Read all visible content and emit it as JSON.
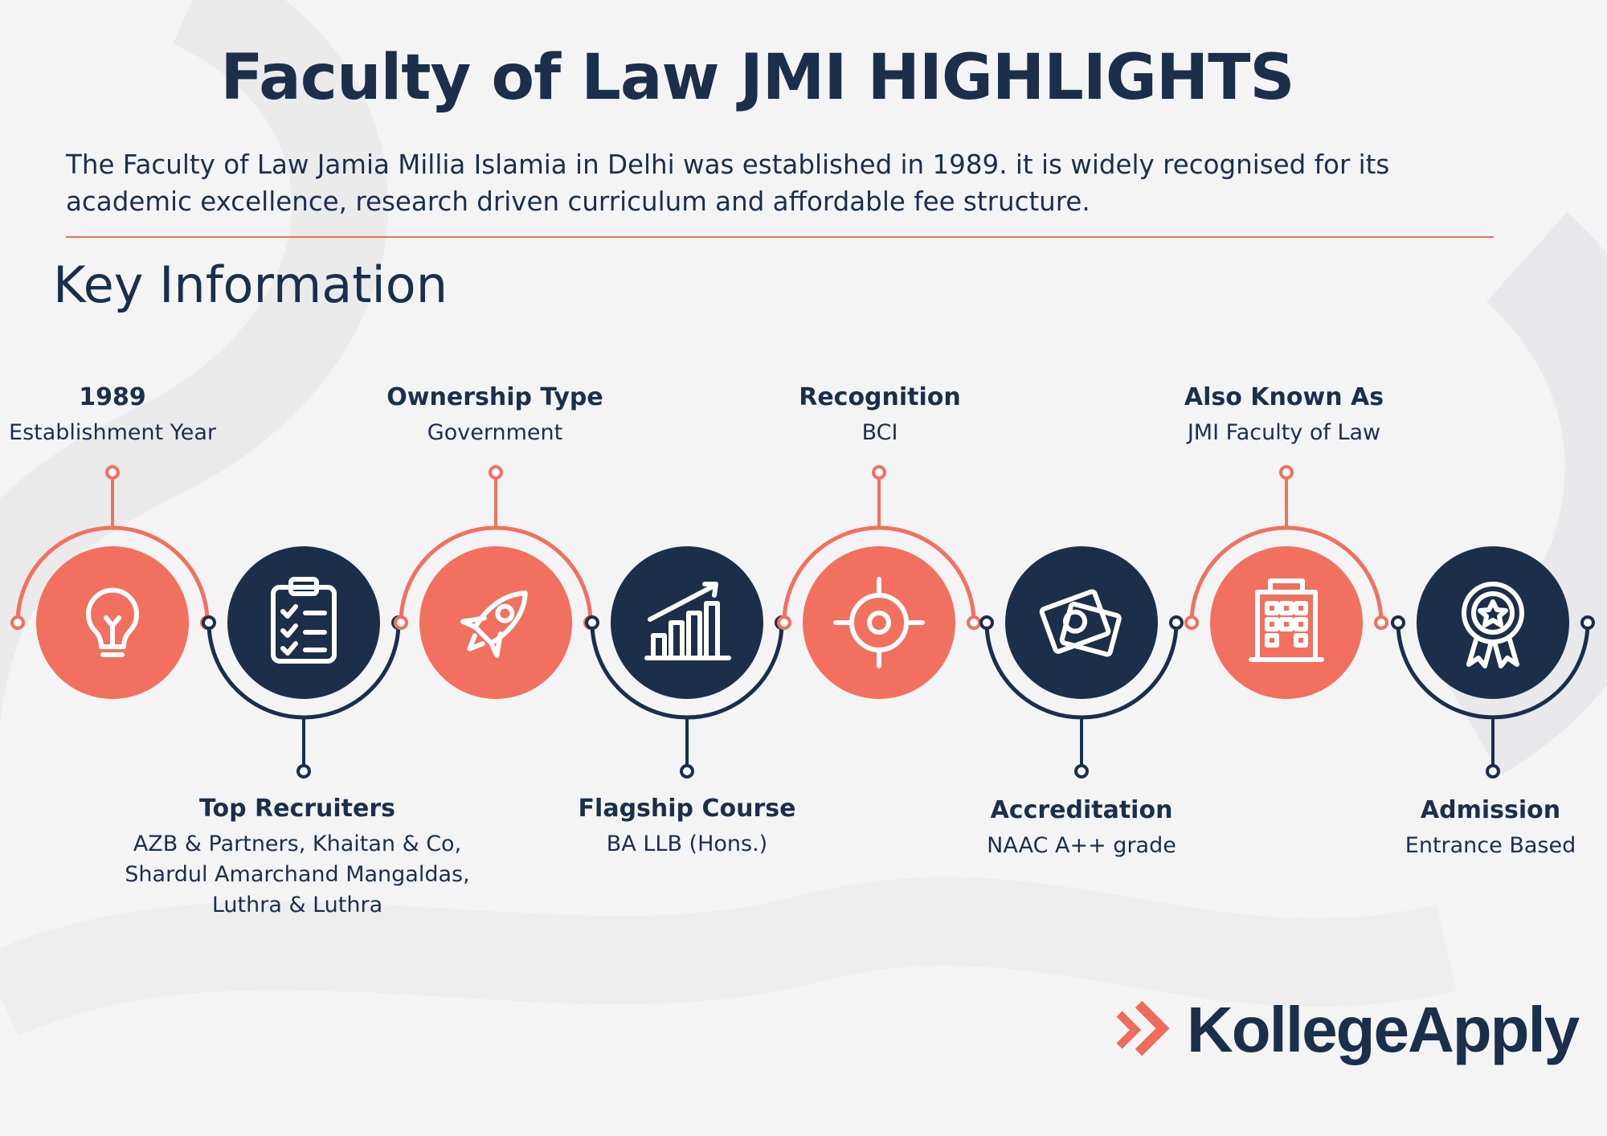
{
  "header": {
    "title": "Faculty of Law JMI HIGHLIGHTS",
    "intro": "The Faculty of Law Jamia Millia Islamia in Delhi was established in 1989. it is widely recognised for its academic excellence, research driven curriculum and affordable fee structure."
  },
  "section_title": "Key Information",
  "colors": {
    "coral": "#f2705f",
    "navy": "#1b2f4b",
    "background": "#f4f4f5"
  },
  "items": [
    {
      "value": "1989",
      "label": "Establishment Year",
      "icon": "lightbulb-icon",
      "color": "coral"
    },
    {
      "value": "Top Recruiters",
      "label": "AZB & Partners, Khaitan & Co, Shardul Amarchand Mangaldas, Luthra & Luthra",
      "icon": "checklist-icon",
      "color": "navy"
    },
    {
      "value": "Ownership Type",
      "label": "Government",
      "icon": "rocket-icon",
      "color": "coral"
    },
    {
      "value": "Flagship Course",
      "label": "BA LLB (Hons.)",
      "icon": "growth-chart-icon",
      "color": "navy"
    },
    {
      "value": "Recognition",
      "label": "BCI",
      "icon": "target-icon",
      "color": "coral"
    },
    {
      "value": "Accreditation",
      "label": "NAAC A++ grade",
      "icon": "money-icon",
      "color": "navy"
    },
    {
      "value": "Also Known As",
      "label": "JMI Faculty of Law",
      "icon": "building-icon",
      "color": "coral"
    },
    {
      "value": "Admission",
      "label": "Entrance Based",
      "icon": "award-badge-icon",
      "color": "navy"
    }
  ],
  "brand": {
    "name": "KollegeApply"
  }
}
